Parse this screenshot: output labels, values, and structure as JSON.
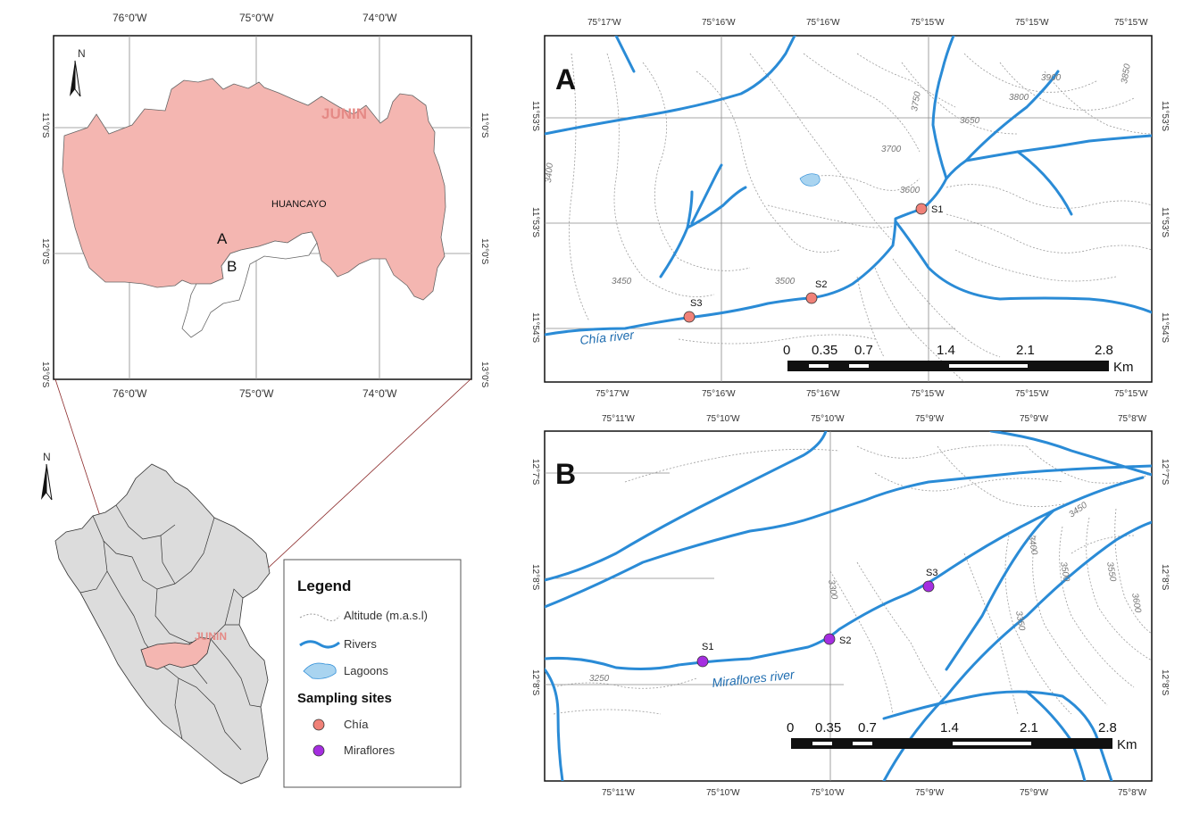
{
  "region_map": {
    "region_label": "JUNIN",
    "city_label": "HUANCAYO",
    "site_letter_a": "A",
    "site_letter_b": "B",
    "north": "N",
    "top_ticks": [
      "76°0'W",
      "75°0'W",
      "74°0'W"
    ],
    "bottom_ticks": [
      "76°0'W",
      "75°0'W",
      "74°0'W"
    ],
    "left_ticks": [
      "11°0'S",
      "12°0'S",
      "13°0'S"
    ],
    "right_ticks": [
      "11°0'S",
      "12°0'S",
      "13°0'S"
    ],
    "region_color": "#f4b6b1"
  },
  "peru_map": {
    "north": "N",
    "region_label": "JUNIN",
    "country_color": "#dcdcdc",
    "region_color": "#f4b6b1"
  },
  "legend": {
    "title": "Legend",
    "items": [
      {
        "icon": "contour-line-icon",
        "label": "Altitude (m.a.s.l)"
      },
      {
        "icon": "river-line-icon",
        "label": "Rivers"
      },
      {
        "icon": "lagoon-icon",
        "label": "Lagoons"
      }
    ],
    "sites_title": "Sampling sites",
    "sites": [
      {
        "label": "Chía",
        "color": "#f08178"
      },
      {
        "label": "Miraflores",
        "color": "#a52ee0"
      }
    ]
  },
  "panel_a": {
    "letter": "A",
    "top_ticks": [
      "75°17'W",
      "75°16'W",
      "75°16'W",
      "75°15'W",
      "75°15'W",
      "75°15'W"
    ],
    "bottom_ticks": [
      "75°17'W",
      "75°16'W",
      "75°16'W",
      "75°15'W",
      "75°15'W",
      "75°15'W"
    ],
    "left_ticks": [
      "11°53'S",
      "11°53'S",
      "11°54'S"
    ],
    "right_ticks": [
      "11°53'S",
      "11°53'S",
      "11°54'S"
    ],
    "altitudes": [
      "3400",
      "3450",
      "3500",
      "3600",
      "3650",
      "3700",
      "3750",
      "3800",
      "3850",
      "3900"
    ],
    "river_name": "Chía river",
    "sites": [
      "S1",
      "S2",
      "S3"
    ],
    "scale_labels": [
      "0",
      "0.35",
      "0.7",
      "1.4",
      "2.1",
      "2.8"
    ],
    "scale_unit": "Km"
  },
  "panel_b": {
    "letter": "B",
    "top_ticks": [
      "75°11'W",
      "75°10'W",
      "75°10'W",
      "75°9'W",
      "75°9'W",
      "75°8'W"
    ],
    "bottom_ticks": [
      "75°11'W",
      "75°10'W",
      "75°10'W",
      "75°9'W",
      "75°9'W",
      "75°8'W"
    ],
    "left_ticks": [
      "12°7'S",
      "12°8'S",
      "12°8'S"
    ],
    "right_ticks": [
      "12°7'S",
      "12°8'S",
      "12°8'S"
    ],
    "altitudes": [
      "3250",
      "3300",
      "3350",
      "3400",
      "3450",
      "3500",
      "3550",
      "3600"
    ],
    "river_name": "Miraflores river",
    "sites": [
      "S1",
      "S2",
      "S3"
    ],
    "scale_labels": [
      "0",
      "0.35",
      "0.7",
      "1.4",
      "2.1",
      "2.8"
    ],
    "scale_unit": "Km"
  }
}
